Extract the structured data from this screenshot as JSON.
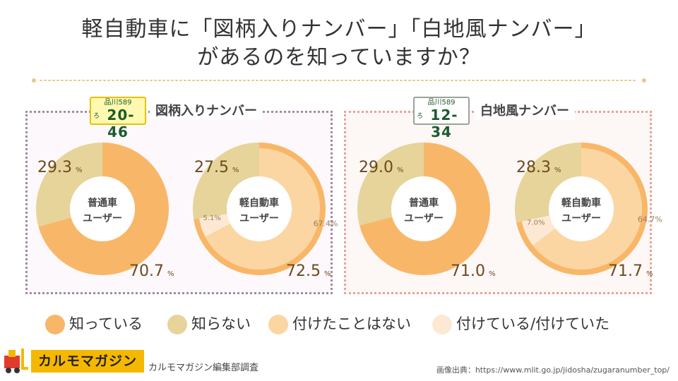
{
  "title": {
    "line1": "軽自動車に「図柄入りナンバー」「白地風ナンバー」",
    "line2": "があるのを知っていますか？"
  },
  "panels": {
    "left_title": "図柄入りナンバー",
    "right_title": "白地風ナンバー"
  },
  "plates": {
    "a": {
      "top": "品川589",
      "kana": "ろ",
      "number": "20-46"
    },
    "b": {
      "top": "品川589",
      "kana": "ろ",
      "number": "12-34"
    }
  },
  "legend": {
    "know": "知っている",
    "dont_know": "知らない",
    "never_attached": "付けたことはない",
    "attached": "付けている/付けていた"
  },
  "colors": {
    "know": "#f8b768",
    "dont_know": "#e6d49a",
    "never_attached": "#fbd6a3",
    "attached": "#fde8d4",
    "label": "#6b4a1e"
  },
  "chart_data": [
    {
      "type": "pie",
      "title": "図柄入りナンバー",
      "center_label": [
        "普通車",
        "ユーザー"
      ],
      "slices": [
        {
          "name": "知っている",
          "value": 70.7,
          "label": "70.7"
        },
        {
          "name": "知らない",
          "value": 29.3,
          "label": "29.3"
        }
      ],
      "unit": "%"
    },
    {
      "type": "pie",
      "title": "図柄入りナンバー",
      "center_label": [
        "軽自動車",
        "ユーザー"
      ],
      "slices": [
        {
          "name": "知っている",
          "value": 72.5,
          "label": "72.5"
        },
        {
          "name": "知らない",
          "value": 27.5,
          "label": "27.5"
        }
      ],
      "inner_slices": [
        {
          "name": "付けたことはない",
          "value": 67.4,
          "label": "67.4%"
        },
        {
          "name": "付けている/付けていた",
          "value": 5.1,
          "label": "5.1%"
        }
      ],
      "unit": "%"
    },
    {
      "type": "pie",
      "title": "白地風ナンバー",
      "center_label": [
        "普通車",
        "ユーザー"
      ],
      "slices": [
        {
          "name": "知っている",
          "value": 71.0,
          "label": "71.0"
        },
        {
          "name": "知らない",
          "value": 29.0,
          "label": "29.0"
        }
      ],
      "unit": "%"
    },
    {
      "type": "pie",
      "title": "白地風ナンバー",
      "center_label": [
        "軽自動車",
        "ユーザー"
      ],
      "slices": [
        {
          "name": "知っている",
          "value": 71.7,
          "label": "71.7"
        },
        {
          "name": "知らない",
          "value": 28.3,
          "label": "28.3"
        }
      ],
      "inner_slices": [
        {
          "name": "付けたことはない",
          "value": 64.7,
          "label": "64.7%"
        },
        {
          "name": "付けている/付けていた",
          "value": 7.0,
          "label": "7.0%"
        }
      ],
      "unit": "%"
    }
  ],
  "footer": {
    "logo": "カルモマガジン",
    "survey": "カルモマガジン編集部調査",
    "source": "画像出典：https://www.mlit.go.jp/jidosha/zugaranumber_top/"
  }
}
